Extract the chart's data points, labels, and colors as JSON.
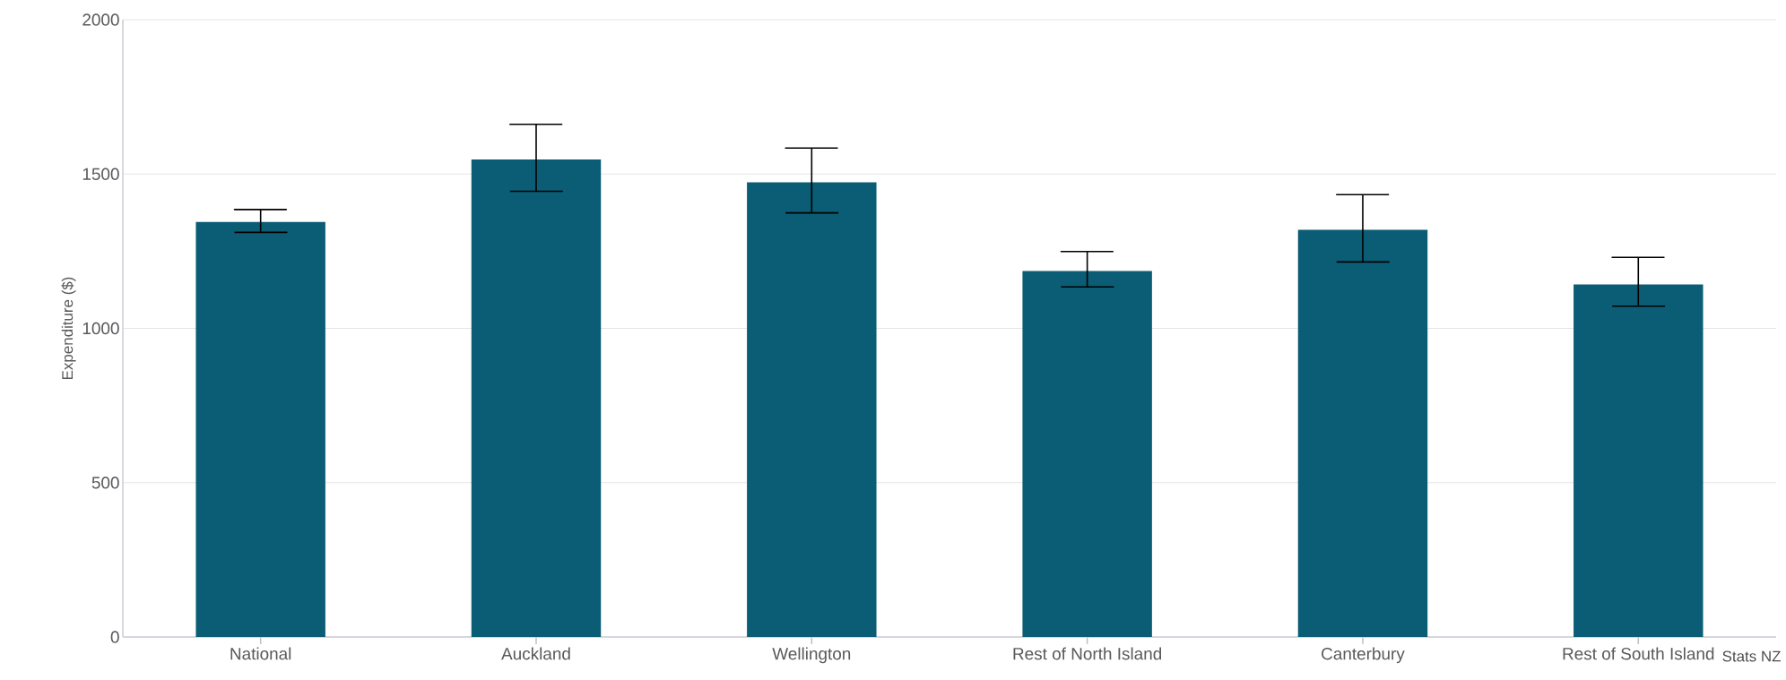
{
  "chart_data": {
    "type": "bar",
    "ylabel": "Expenditure ($)",
    "categories": [
      "National",
      "Auckland",
      "Wellington",
      "Rest of North Island",
      "Canterbury",
      "Rest of South Island"
    ],
    "values": [
      1345,
      1547,
      1473,
      1186,
      1319,
      1142
    ],
    "errors": [
      [
        1311,
        1385
      ],
      [
        1444,
        1661
      ],
      [
        1374,
        1584
      ],
      [
        1134,
        1249
      ],
      [
        1215,
        1433
      ],
      [
        1072,
        1230
      ]
    ],
    "color": "#0b5c75",
    "ylim": [
      0,
      2000
    ],
    "yticks": [
      0,
      500,
      1000,
      1500,
      2000
    ],
    "grid": "y",
    "annotations": [
      "Stats NZ"
    ]
  }
}
